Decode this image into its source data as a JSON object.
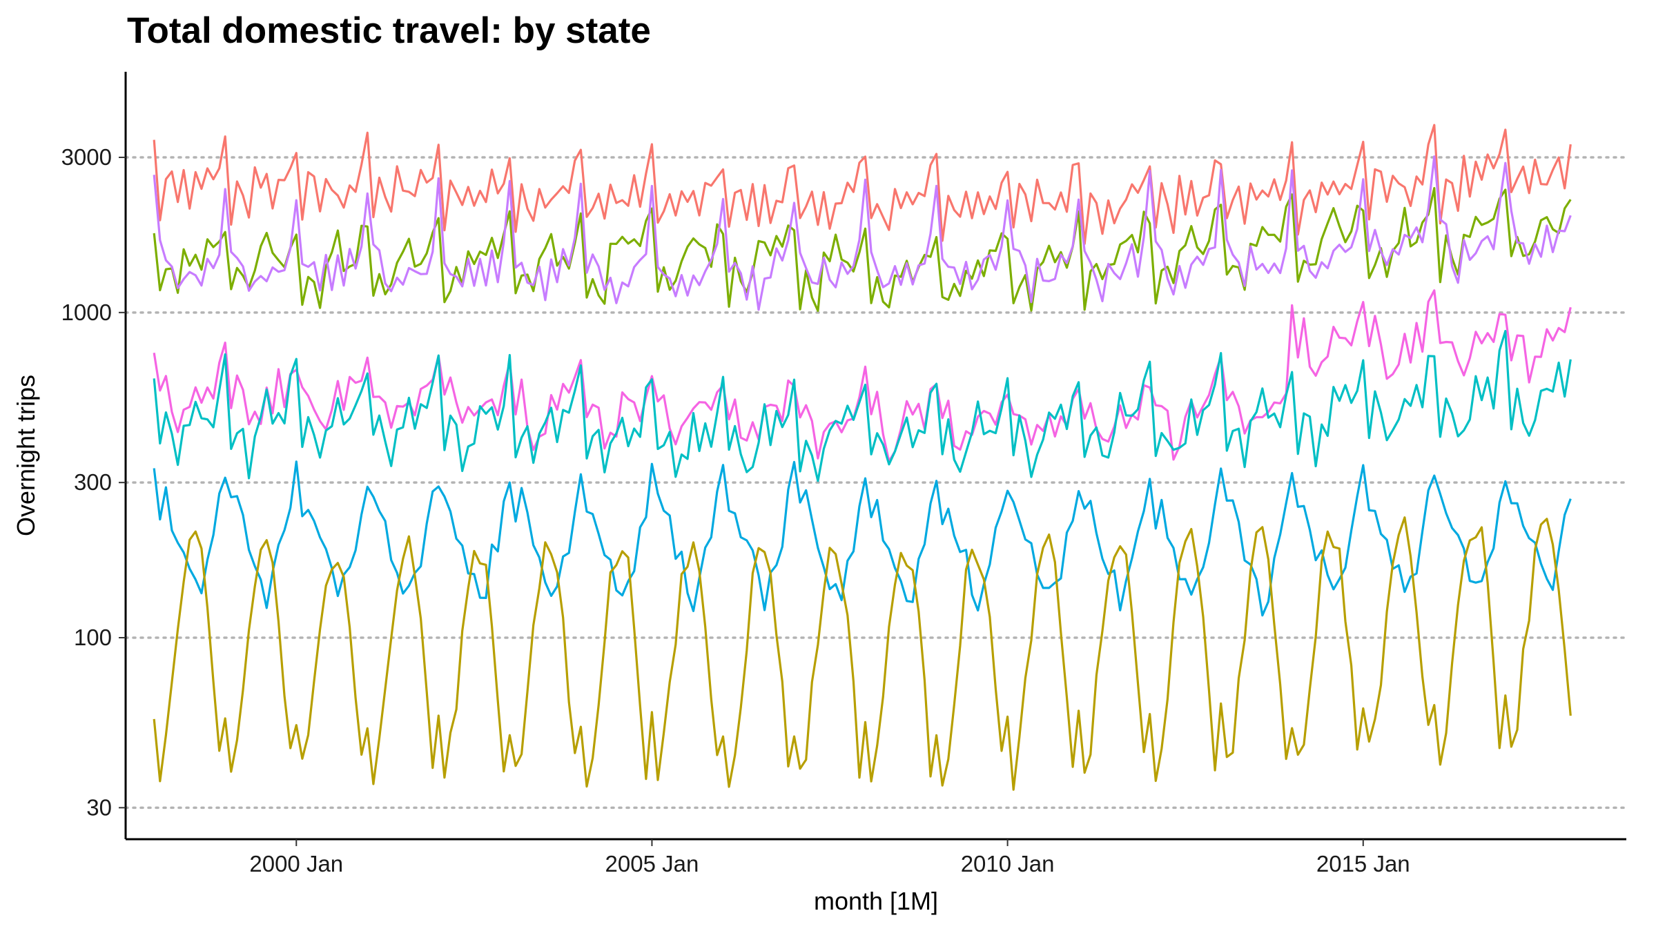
{
  "chart_data": {
    "type": "line",
    "title": "Total domestic travel: by state",
    "xlabel": "month [1M]",
    "ylabel": "Overnight trips",
    "y_scale": "log10",
    "ylim": [
      24,
      5500
    ],
    "y_ticks": [
      30,
      100,
      300,
      1000,
      3000
    ],
    "y_tick_labels": [
      "30",
      "100",
      "300",
      "1000",
      "3000"
    ],
    "x_range": [
      "1998 Jan",
      "2017 Dec"
    ],
    "x_range_index": [
      -0.4,
      20.7
    ],
    "x_ticks": [
      2,
      7,
      12,
      17
    ],
    "x_tick_labels": [
      "2000 Jan",
      "2005 Jan",
      "2010 Jan",
      "2015 Jan"
    ],
    "start_month": "1998 Jan",
    "n_months": 240,
    "grid": "horizontal-dotted",
    "legend": "none",
    "series": [
      {
        "name": "series-red",
        "color": "#F8766D",
        "annual_profile": [
          3350,
          2050,
          2550,
          2500,
          2150,
          2700,
          2300,
          2550,
          2350,
          2650,
          2500,
          2950
        ],
        "trend": [
          [
            0,
            2500
          ],
          [
            48,
            2450
          ],
          [
            96,
            2250
          ],
          [
            144,
            2250
          ],
          [
            180,
            2300
          ],
          [
            216,
            2600
          ],
          [
            239,
            2750
          ]
        ]
      },
      {
        "name": "series-green",
        "color": "#7CAE00",
        "annual_profile": [
          1850,
          1100,
          1300,
          1250,
          1150,
          1450,
          1500,
          1650,
          1450,
          1550,
          1500,
          1750
        ],
        "trend": [
          [
            0,
            1450
          ],
          [
            48,
            1450
          ],
          [
            96,
            1500
          ],
          [
            132,
            1350
          ],
          [
            168,
            1550
          ],
          [
            216,
            1750
          ],
          [
            239,
            1850
          ]
        ]
      },
      {
        "name": "series-purple",
        "color": "#C77CFF",
        "annual_profile": [
          2550,
          1600,
          1500,
          1350,
          1200,
          1450,
          1250,
          1450,
          1400,
          1550,
          1450,
          1700
        ],
        "trend": [
          [
            0,
            1500
          ],
          [
            48,
            1450
          ],
          [
            96,
            1400
          ],
          [
            144,
            1450
          ],
          [
            192,
            1550
          ],
          [
            216,
            1750
          ],
          [
            239,
            1900
          ]
        ]
      },
      {
        "name": "series-magenta",
        "color": "#F564E3",
        "annual_profile": [
          760,
          560,
          640,
          540,
          460,
          500,
          510,
          600,
          560,
          630,
          580,
          700
        ],
        "trend": [
          [
            0,
            580
          ],
          [
            48,
            560
          ],
          [
            96,
            500
          ],
          [
            132,
            470
          ],
          [
            191,
            520
          ],
          [
            192,
            800
          ],
          [
            239,
            840
          ]
        ]
      },
      {
        "name": "series-teal",
        "color": "#00BFC4",
        "annual_profile": [
          760,
          420,
          520,
          470,
          380,
          450,
          480,
          590,
          500,
          570,
          520,
          650
        ],
        "trend": [
          [
            0,
            480
          ],
          [
            48,
            480
          ],
          [
            96,
            430
          ],
          [
            144,
            440
          ],
          [
            192,
            500
          ],
          [
            239,
            590
          ]
        ]
      },
      {
        "name": "series-blue",
        "color": "#00A9E0",
        "annual_profile": [
          330,
          260,
          270,
          230,
          190,
          180,
          155,
          140,
          150,
          180,
          210,
          270
        ],
        "trend": [
          [
            0,
            210
          ],
          [
            48,
            210
          ],
          [
            96,
            205
          ],
          [
            144,
            200
          ],
          [
            192,
            200
          ],
          [
            239,
            220
          ]
        ]
      },
      {
        "name": "series-olive",
        "color": "#B79F00",
        "annual_profile": [
          68,
          48,
          58,
          85,
          125,
          185,
          225,
          235,
          205,
          140,
          85,
          52
        ],
        "trend": [
          [
            0,
            105
          ],
          [
            48,
            100
          ],
          [
            96,
            100
          ],
          [
            144,
            100
          ],
          [
            192,
            108
          ],
          [
            239,
            130
          ]
        ]
      }
    ]
  }
}
